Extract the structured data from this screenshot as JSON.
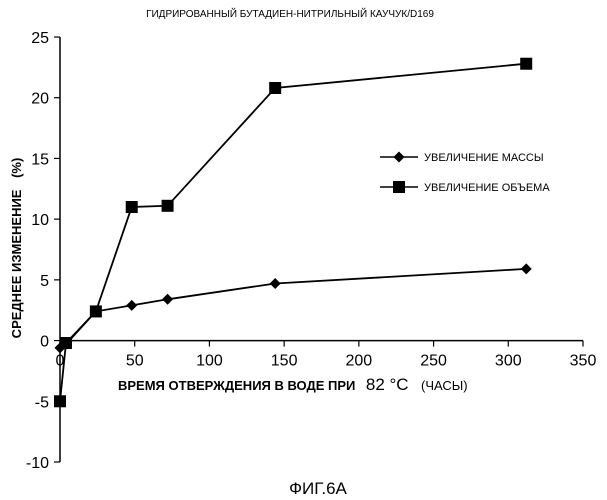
{
  "chart_data": {
    "type": "line",
    "title": "ГИДРИРОВАННЫЙ БУТАДИЕН-НИТРИЛЬНЫЙ КАУЧУК/D169",
    "xlabel": {
      "main": "ВРЕМЯ ОТВЕРЖДЕНИЯ В ВОДЕ ПРИ",
      "temp": "82 °C",
      "unit": "(ЧАСЫ)"
    },
    "ylabel": {
      "main": "СРЕДНЕЕ ИЗМЕНЕНИЕ",
      "unit": "(%)"
    },
    "xlim": [
      0,
      350
    ],
    "ylim": [
      -10,
      25
    ],
    "x_ticks": [
      "0",
      "50",
      "100",
      "150",
      "200",
      "250",
      "300",
      "350"
    ],
    "y_ticks": [
      "-10",
      "-5",
      "0",
      "5",
      "10",
      "15",
      "20",
      "25"
    ],
    "grid": false,
    "legend_position": "right",
    "series": [
      {
        "name": "УВЕЛИЧЕНИЕ МАССЫ",
        "marker": "diamond",
        "x": [
          0,
          4,
          24,
          48,
          72,
          144,
          312
        ],
        "y": [
          -0.6,
          -0.3,
          2.4,
          2.9,
          3.4,
          4.7,
          5.9
        ]
      },
      {
        "name": "УВЕЛИЧЕНИЕ ОБЪЕМА",
        "marker": "square",
        "x": [
          0,
          4,
          24,
          48,
          72,
          144,
          312
        ],
        "y": [
          -5.0,
          -0.2,
          2.4,
          11.0,
          11.1,
          20.8,
          22.8
        ]
      }
    ]
  },
  "figure_caption": "ФИГ.6А"
}
